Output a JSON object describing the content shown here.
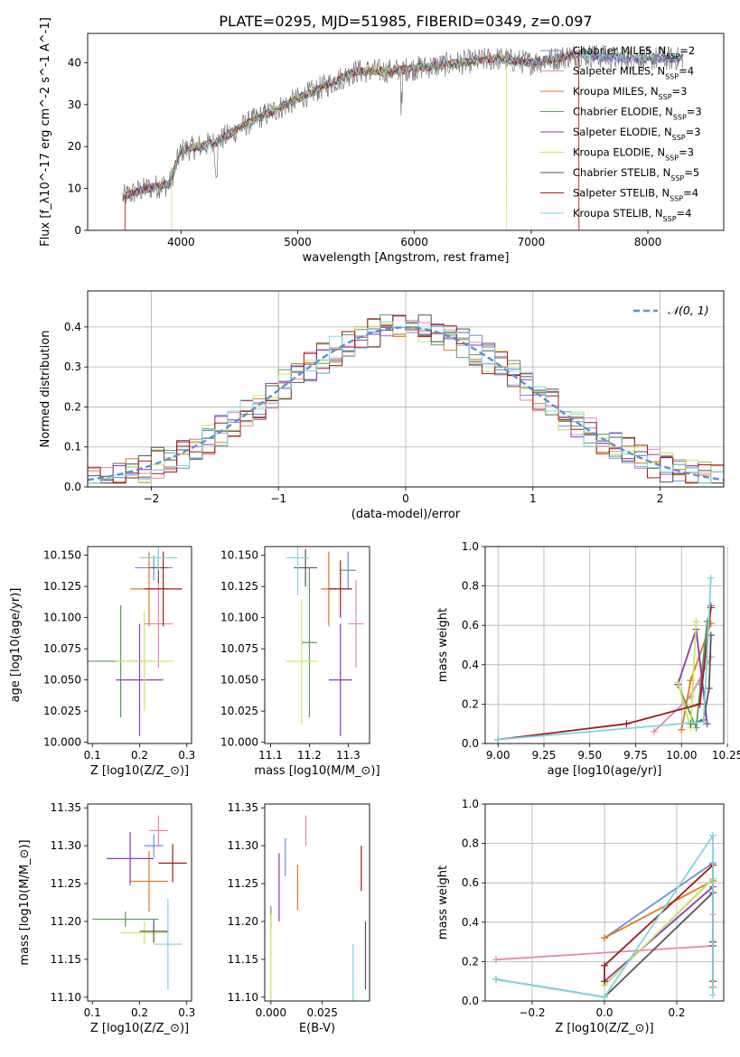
{
  "figure": {
    "title": "PLATE=0295, MJD=51985, FIBERID=0349, z=0.097"
  },
  "colors": {
    "Chabrier MILES": "#6c8fd9",
    "Salpeter MILES": "#e986b3",
    "Kroupa MILES": "#e07a1f",
    "Chabrier ELODIE": "#5f9a5f",
    "Salpeter ELODIE": "#8e3ab3",
    "Kroupa ELODIE": "#c9e65a",
    "Chabrier STELIB": "#555555",
    "Salpeter STELIB": "#a31a1a",
    "Kroupa STELIB": "#7dd6df",
    "normal_curve": "#5b8fd6",
    "grid": "#b0b0b0",
    "data": "#777777"
  },
  "chart_data": [
    {
      "id": "spectrum",
      "type": "line",
      "title": "PLATE=0295, MJD=51985, FIBERID=0349, z=0.097",
      "xlabel": "wavelength [Angstrom, rest frame]",
      "ylabel": "Flux [f_λ10^-17 erg cm^-2 s^-1 A^-1]",
      "xlim": [
        3200,
        8650
      ],
      "ylim": [
        0,
        47
      ],
      "xticks": [
        "4000",
        "5000",
        "6000",
        "7000",
        "8000"
      ],
      "yticks": [
        "0",
        "10",
        "20",
        "30",
        "40"
      ],
      "grid": false,
      "legend_position": "upper right",
      "legend": [
        "Chabrier MILES, N_SSP=2",
        "Salpeter MILES, N_SSP=4",
        "Kroupa MILES, N_SSP=3",
        "Chabrier ELODIE, N_SSP=3",
        "Salpeter ELODIE, N_SSP=3",
        "Kroupa ELODIE, N_SSP=3",
        "Chabrier STELIB, N_SSP=5",
        "Salpeter STELIB, N_SSP=4",
        "Kroupa STELIB, N_SSP=4"
      ],
      "data_shape": {
        "x": [
          3500,
          3700,
          3900,
          4000,
          4300,
          4600,
          4900,
          5200,
          5500,
          5800,
          6100,
          6400,
          6700,
          7000,
          7400,
          7800,
          8200
        ],
        "y": [
          8,
          10,
          11,
          19,
          21,
          26,
          30,
          34,
          38,
          38,
          39,
          40,
          41,
          40,
          42,
          41,
          41
        ]
      },
      "model_cutoffs": {
        "Kroupa ELODIE": [
          3920,
          6790
        ],
        "Salpeter STELIB": [
          3520,
          7410
        ],
        "Kroupa MILES": [
          3520,
          7410
        ]
      }
    },
    {
      "id": "residuals",
      "type": "histogram",
      "xlabel": "(data-model)/error",
      "ylabel": "Normed distribution",
      "xlim": [
        -2.5,
        2.5
      ],
      "ylim": [
        0,
        0.49
      ],
      "xticks": [
        "−2",
        "−1",
        "0",
        "1",
        "2"
      ],
      "yticks": [
        "0.0",
        "0.1",
        "0.2",
        "0.3",
        "0.4"
      ],
      "grid": true,
      "legend_position": "upper right",
      "legend": [
        "𝒩(0, 1)"
      ],
      "bin_width": 0.1
    },
    {
      "id": "age_vs_Z",
      "type": "scatter",
      "xlabel": "Z [log10(Z/Z_⊙)]",
      "ylabel": "age [log10(age/yr)]",
      "xlim": [
        0.09,
        0.31
      ],
      "ylim": [
        9.999,
        10.157
      ],
      "xticks": [
        "0.1",
        "0.2",
        "0.3"
      ],
      "yticks": [
        "10.000",
        "10.025",
        "10.050",
        "10.075",
        "10.100",
        "10.125",
        "10.150"
      ],
      "points": [
        {
          "model": "Chabrier MILES",
          "x": 0.23,
          "y": 10.14,
          "xerr": 0.04,
          "yerr": 0.01
        },
        {
          "model": "Salpeter MILES",
          "x": 0.24,
          "y": 10.095,
          "xerr": 0.03,
          "yerr": 0.035
        },
        {
          "model": "Kroupa MILES",
          "x": 0.22,
          "y": 10.123,
          "xerr": 0.04,
          "yerr": 0.03
        },
        {
          "model": "Chabrier ELODIE",
          "x": 0.16,
          "y": 10.065,
          "xerr": 0.07,
          "yerr": 0.045
        },
        {
          "model": "Salpeter ELODIE",
          "x": 0.2,
          "y": 10.05,
          "xerr": 0.05,
          "yerr": 0.045
        },
        {
          "model": "Kroupa ELODIE",
          "x": 0.21,
          "y": 10.065,
          "xerr": 0.06,
          "yerr": 0.04
        },
        {
          "model": "Chabrier STELIB",
          "x": 0.24,
          "y": 10.14,
          "xerr": 0.02,
          "yerr": 0.012
        },
        {
          "model": "Salpeter STELIB",
          "x": 0.25,
          "y": 10.123,
          "xerr": 0.04,
          "yerr": 0.03
        },
        {
          "model": "Kroupa STELIB",
          "x": 0.24,
          "y": 10.148,
          "xerr": 0.04,
          "yerr": 0.01
        }
      ]
    },
    {
      "id": "age_vs_mass",
      "type": "scatter",
      "xlabel": "mass [log10(M/M_⊙)]",
      "ylabel": "",
      "xlim": [
        11.085,
        11.355
      ],
      "ylim": [
        9.999,
        10.157
      ],
      "xticks": [
        "11.1",
        "11.2",
        "11.3"
      ],
      "yticks": [
        "10.000",
        "10.025",
        "10.050",
        "10.075",
        "10.100",
        "10.125",
        "10.150"
      ],
      "points": [
        {
          "model": "Chabrier MILES",
          "x": 11.3,
          "y": 10.138,
          "xerr": 0.02,
          "yerr": 0.015
        },
        {
          "model": "Salpeter MILES",
          "x": 11.32,
          "y": 10.095,
          "xerr": 0.02,
          "yerr": 0.035
        },
        {
          "model": "Kroupa MILES",
          "x": 11.25,
          "y": 10.123,
          "xerr": 0.02,
          "yerr": 0.03
        },
        {
          "model": "Chabrier ELODIE",
          "x": 11.2,
          "y": 10.08,
          "xerr": 0.02,
          "yerr": 0.06
        },
        {
          "model": "Salpeter ELODIE",
          "x": 11.28,
          "y": 10.05,
          "xerr": 0.03,
          "yerr": 0.045
        },
        {
          "model": "Kroupa ELODIE",
          "x": 11.18,
          "y": 10.065,
          "xerr": 0.04,
          "yerr": 0.05
        },
        {
          "model": "Chabrier STELIB",
          "x": 11.19,
          "y": 10.14,
          "xerr": 0.03,
          "yerr": 0.015
        },
        {
          "model": "Salpeter STELIB",
          "x": 11.28,
          "y": 10.123,
          "xerr": 0.03,
          "yerr": 0.023
        },
        {
          "model": "Kroupa STELIB",
          "x": 11.17,
          "y": 10.148,
          "xerr": 0.03,
          "yerr": 0.03
        }
      ]
    },
    {
      "id": "massweight_vs_age",
      "type": "line",
      "xlabel": "age [log10(age/yr)]",
      "ylabel": "mass weight",
      "xlim": [
        8.93,
        10.23
      ],
      "ylim": [
        0,
        1.0
      ],
      "xticks": [
        "9.00",
        "9.25",
        "9.50",
        "9.75",
        "10.00",
        "10.25"
      ],
      "yticks": [
        "0.0",
        "0.2",
        "0.4",
        "0.6",
        "0.8",
        "1.0"
      ],
      "grid": true,
      "series": [
        {
          "model": "Chabrier MILES",
          "x": [
            10.1,
            10.16
          ],
          "y": [
            0.3,
            0.7
          ]
        },
        {
          "model": "Salpeter MILES",
          "x": [
            9.85,
            10.05,
            10.16
          ],
          "y": [
            0.06,
            0.24,
            0.44
          ]
        },
        {
          "model": "Kroupa MILES",
          "x": [
            10.0,
            10.05,
            10.16
          ],
          "y": [
            0.07,
            0.32,
            0.61
          ]
        },
        {
          "model": "Chabrier ELODIE",
          "x": [
            9.98,
            10.08,
            10.14
          ],
          "y": [
            0.3,
            0.08,
            0.62
          ]
        },
        {
          "model": "Salpeter ELODIE",
          "x": [
            9.98,
            10.08,
            10.14
          ],
          "y": [
            0.3,
            0.58,
            0.1
          ]
        },
        {
          "model": "Kroupa ELODIE",
          "x": [
            9.98,
            10.05,
            10.08
          ],
          "y": [
            0.31,
            0.08,
            0.62
          ]
        },
        {
          "model": "Chabrier STELIB",
          "x": [
            10.05,
            10.12,
            10.15,
            10.16
          ],
          "y": [
            0.1,
            0.12,
            0.28,
            0.55
          ]
        },
        {
          "model": "Salpeter STELIB",
          "x": [
            9.0,
            9.7,
            10.1,
            10.16
          ],
          "y": [
            0.02,
            0.1,
            0.2,
            0.69
          ]
        },
        {
          "model": "Kroupa STELIB",
          "x": [
            9.0,
            10.12,
            10.16
          ],
          "y": [
            0.02,
            0.11,
            0.84
          ]
        }
      ]
    },
    {
      "id": "mass_vs_Z",
      "type": "scatter",
      "xlabel": "Z [log10(Z/Z_⊙)]",
      "ylabel": "mass [log10(M/M_⊙)]",
      "xlim": [
        0.09,
        0.31
      ],
      "ylim": [
        11.095,
        11.355
      ],
      "xticks": [
        "0.1",
        "0.2",
        "0.3"
      ],
      "yticks": [
        "11.10",
        "11.15",
        "11.20",
        "11.25",
        "11.30",
        "11.35"
      ],
      "points": [
        {
          "model": "Chabrier MILES",
          "x": 0.23,
          "y": 11.3,
          "xerr": 0.02,
          "yerr": 0.015
        },
        {
          "model": "Salpeter MILES",
          "x": 0.24,
          "y": 11.32,
          "xerr": 0.02,
          "yerr": 0.02
        },
        {
          "model": "Kroupa MILES",
          "x": 0.22,
          "y": 11.253,
          "xerr": 0.04,
          "yerr": 0.04
        },
        {
          "model": "Chabrier ELODIE",
          "x": 0.17,
          "y": 11.203,
          "xerr": 0.07,
          "yerr": 0.01
        },
        {
          "model": "Salpeter ELODIE",
          "x": 0.18,
          "y": 11.283,
          "xerr": 0.05,
          "yerr": 0.035
        },
        {
          "model": "Kroupa ELODIE",
          "x": 0.21,
          "y": 11.185,
          "xerr": 0.05,
          "yerr": 0.015
        },
        {
          "model": "Chabrier STELIB",
          "x": 0.23,
          "y": 11.187,
          "xerr": 0.03,
          "yerr": 0.015
        },
        {
          "model": "Salpeter STELIB",
          "x": 0.27,
          "y": 11.277,
          "xerr": 0.03,
          "yerr": 0.025
        },
        {
          "model": "Kroupa STELIB",
          "x": 0.26,
          "y": 11.17,
          "xerr": 0.03,
          "yerr": 0.06
        }
      ]
    },
    {
      "id": "mass_vs_ebv",
      "type": "scatter",
      "xlabel": "E(B-V)",
      "ylabel": "",
      "xlim": [
        -0.003,
        0.048
      ],
      "ylim": [
        11.095,
        11.355
      ],
      "xticks": [
        "0.000",
        "0.025"
      ],
      "yticks": [
        "11.10",
        "11.15",
        "11.20",
        "11.25",
        "11.30",
        "11.35"
      ],
      "points": [
        {
          "model": "Chabrier MILES",
          "x": 0.007,
          "y": 11.285,
          "xerr": 0,
          "yerr": 0.025
        },
        {
          "model": "Salpeter MILES",
          "x": 0.017,
          "y": 11.32,
          "xerr": 0,
          "yerr": 0.02
        },
        {
          "model": "Kroupa MILES",
          "x": 0.013,
          "y": 11.245,
          "xerr": 0,
          "yerr": 0.03
        },
        {
          "model": "Chabrier ELODIE",
          "x": 0.0,
          "y": 11.205,
          "xerr": 0,
          "yerr": 0.015
        },
        {
          "model": "Salpeter ELODIE",
          "x": 0.004,
          "y": 11.245,
          "xerr": 0,
          "yerr": 0.045
        },
        {
          "model": "Kroupa ELODIE",
          "x": 0.0,
          "y": 11.15,
          "xerr": 0,
          "yerr": 0.06
        },
        {
          "model": "Chabrier STELIB",
          "x": 0.046,
          "y": 11.155,
          "xerr": 0,
          "yerr": 0.045
        },
        {
          "model": "Salpeter STELIB",
          "x": 0.044,
          "y": 11.27,
          "xerr": 0,
          "yerr": 0.03
        },
        {
          "model": "Kroupa STELIB",
          "x": 0.04,
          "y": 11.125,
          "xerr": 0,
          "yerr": 0.045
        }
      ]
    },
    {
      "id": "massweight_vs_Z",
      "type": "line",
      "xlabel": "Z [log10(Z/Z_⊙)]",
      "ylabel": "mass weight",
      "xlim": [
        -0.33,
        0.33
      ],
      "ylim": [
        0,
        1.0
      ],
      "xticks": [
        "−0.2",
        "0.0",
        "0.2"
      ],
      "yticks": [
        "0.0",
        "0.2",
        "0.4",
        "0.6",
        "0.8",
        "1.0"
      ],
      "grid": true,
      "series": [
        {
          "model": "Chabrier MILES",
          "x": [
            0.0,
            0.3,
            0.3
          ],
          "y": [
            0.32,
            0.7,
            0.3
          ]
        },
        {
          "model": "Salpeter MILES",
          "x": [
            -0.3,
            0.3,
            0.3
          ],
          "y": [
            0.21,
            0.28,
            0.44
          ]
        },
        {
          "model": "Kroupa MILES",
          "x": [
            0.0,
            0.3,
            0.3
          ],
          "y": [
            0.32,
            0.61,
            0.07
          ]
        },
        {
          "model": "Chabrier ELODIE",
          "x": [
            0.0,
            0.3,
            0.3
          ],
          "y": [
            0.08,
            0.62,
            0.3
          ]
        },
        {
          "model": "Salpeter ELODIE",
          "x": [
            0.0,
            0.3,
            0.3
          ],
          "y": [
            0.1,
            0.58,
            0.3
          ]
        },
        {
          "model": "Kroupa ELODIE",
          "x": [
            0.0,
            0.3,
            0.3
          ],
          "y": [
            0.08,
            0.62,
            0.31
          ]
        },
        {
          "model": "Chabrier STELIB",
          "x": [
            -0.3,
            0.0,
            0.3,
            0.3
          ],
          "y": [
            0.11,
            0.02,
            0.55,
            0.28
          ]
        },
        {
          "model": "Salpeter STELIB",
          "x": [
            0.0,
            0.0,
            0.3,
            0.3
          ],
          "y": [
            0.1,
            0.18,
            0.69,
            0.1
          ]
        },
        {
          "model": "Kroupa STELIB",
          "x": [
            -0.3,
            0.0,
            0.3,
            0.3
          ],
          "y": [
            0.11,
            0.02,
            0.84,
            0.03
          ]
        }
      ]
    }
  ]
}
